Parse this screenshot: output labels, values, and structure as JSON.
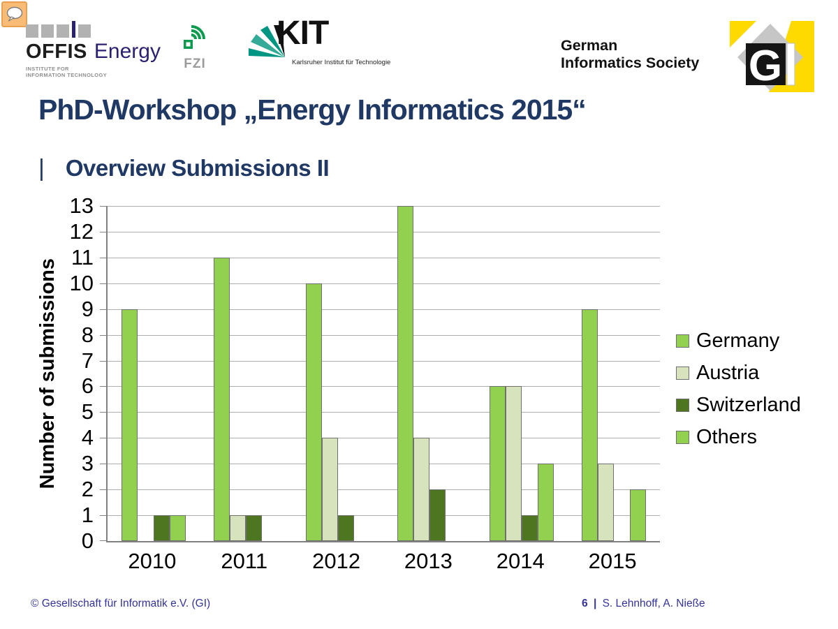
{
  "slide": {
    "title": "PhD-Workshop „Energy Informatics 2015“",
    "subtitle_marker": "|",
    "subtitle": "Overview Submissions II"
  },
  "header": {
    "offis": {
      "wordmark": "OFFIS",
      "wordmark_suffix": "Energy",
      "subline1": "INSTITUTE FOR",
      "subline2": "INFORMATION TECHNOLOGY"
    },
    "fzi": {
      "label": "FZI"
    },
    "kit": {
      "wordmark": "KIT",
      "subline": "Karlsruher Institut für Technologie"
    },
    "society": {
      "line1": "German",
      "line2": "Informatics Society"
    },
    "gi_logo_letters": {
      "g": "G"
    }
  },
  "chart_data": {
    "type": "bar",
    "title": "",
    "categories": [
      "2010",
      "2011",
      "2012",
      "2013",
      "2014",
      "2015"
    ],
    "series": [
      {
        "name": "Germany",
        "color": "#92D050",
        "values": [
          9,
          11,
          10,
          13,
          6,
          9
        ]
      },
      {
        "name": "Austria",
        "color": "#D6E3BC",
        "values": [
          0,
          1,
          4,
          4,
          6,
          3
        ]
      },
      {
        "name": "Switzerland",
        "color": "#4E7520",
        "values": [
          1,
          1,
          1,
          2,
          1,
          0
        ]
      },
      {
        "name": "Others",
        "color": "#92D050",
        "values": [
          1,
          0,
          0,
          0,
          3,
          2
        ]
      }
    ],
    "xlabel": "",
    "ylabel": "Number of submissions",
    "ylim": [
      0,
      13
    ],
    "ytick_step": 1,
    "grid": "horizontal-only",
    "legend_position": "right"
  },
  "footer": {
    "copyright": "© Gesellschaft für Informatik e.V. (GI)",
    "page_number": "6",
    "separator": "|",
    "authors": "S. Lehnhoff, A. Nieße"
  },
  "colors": {
    "title_text": "#1F3864",
    "footer_text": "#333399",
    "gi_yellow": "#FFDA00",
    "gi_gray": "#C6C6C6",
    "kit_green": "#009682",
    "fzi_green": "#0C9A4E",
    "offis_navy": "#2B2171",
    "gridline": "#ADADAD",
    "axis_line": "#808080"
  }
}
